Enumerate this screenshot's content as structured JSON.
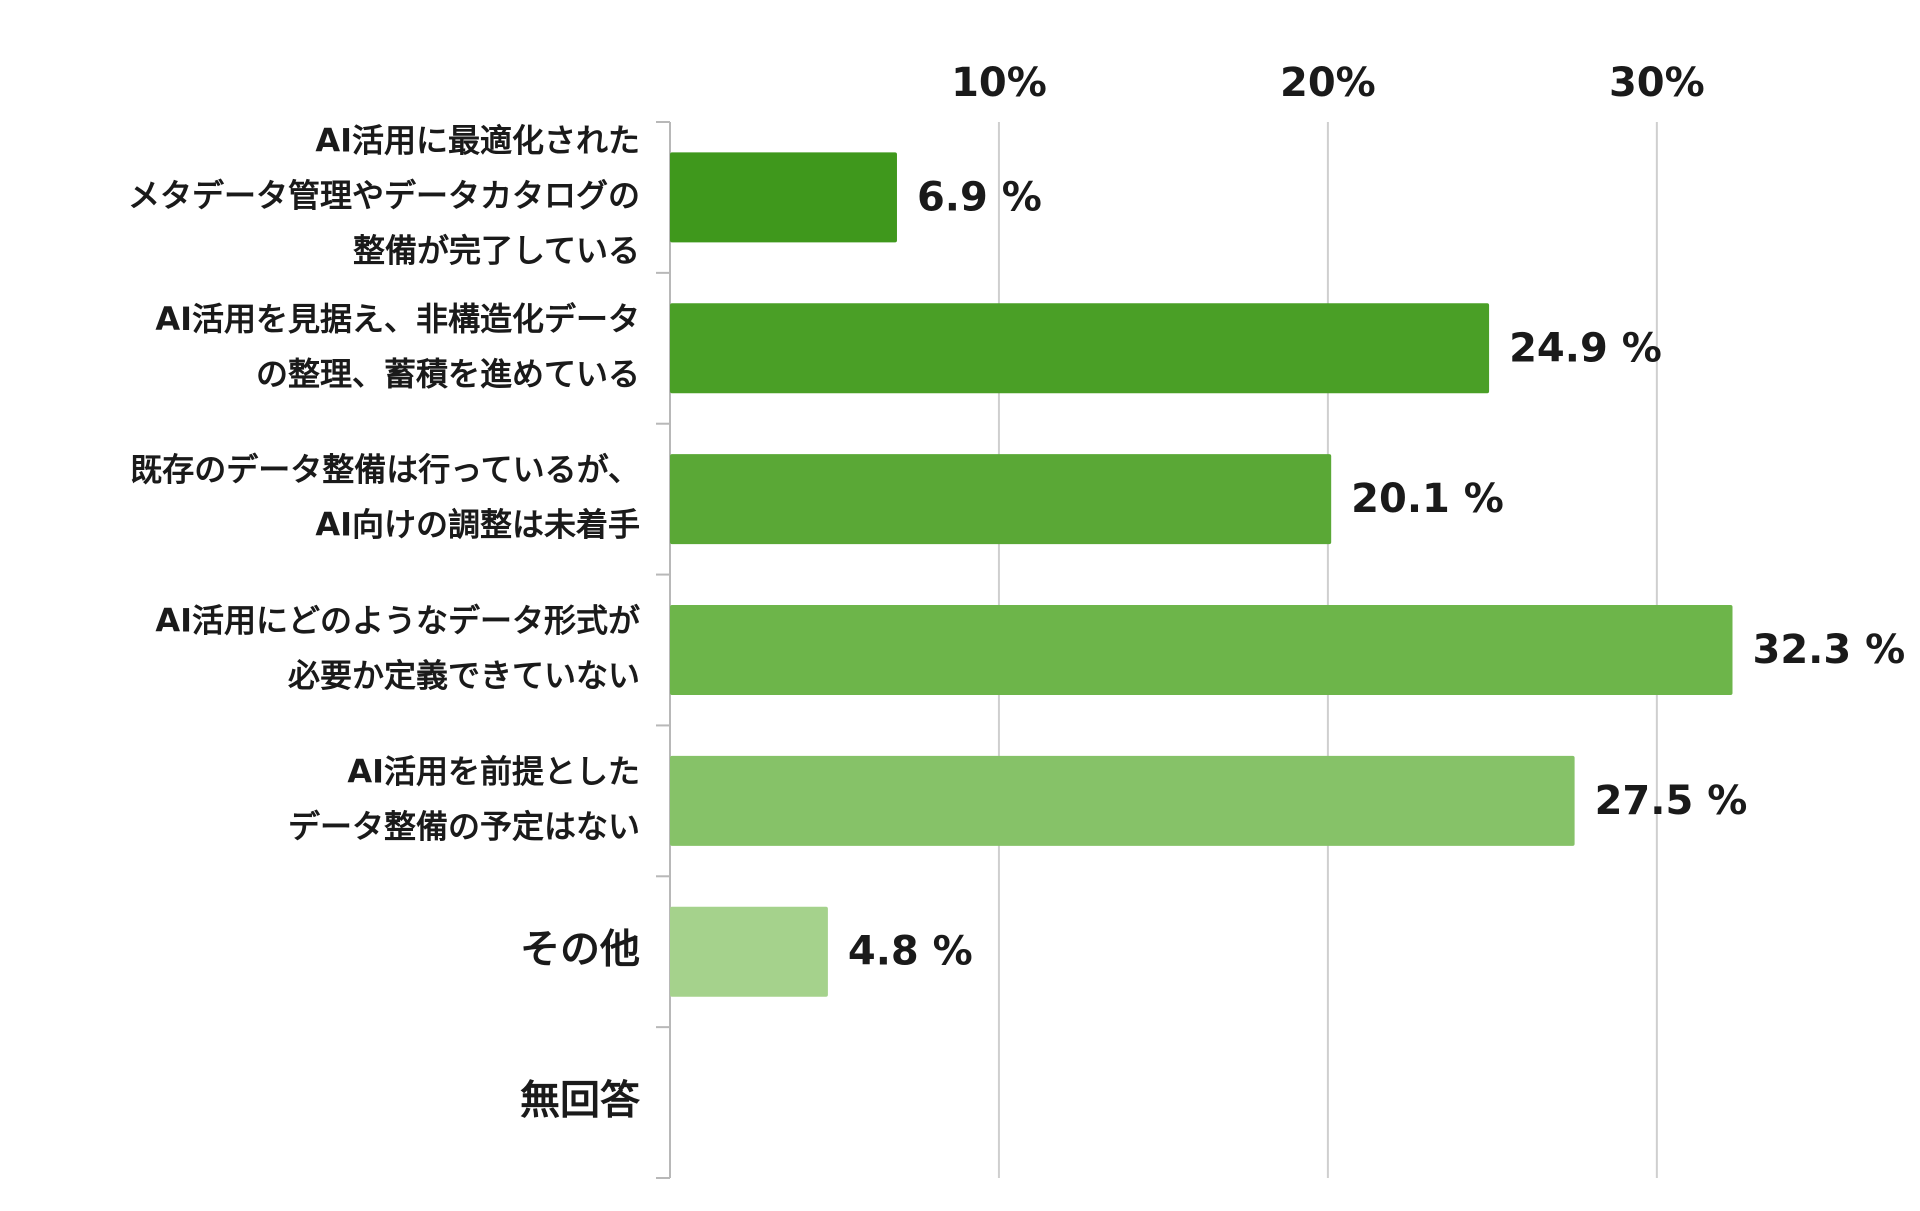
{
  "chart_data": {
    "type": "hbar",
    "categories": [
      [
        "AI活用に最適化された",
        "メタデータ管理やデータカタログの",
        "整備が完了している"
      ],
      [
        "AI活用を見据え、非構造化データ",
        "の整理、蓄積を進めている"
      ],
      [
        "既存のデータ整備は行っているが、",
        "AI向けの調整は未着手"
      ],
      [
        "AI活用にどのようなデータ形式が",
        "必要か定義できていない"
      ],
      [
        "AI活用を前提とした",
        "データ整備の予定はない"
      ],
      [
        "その他"
      ],
      [
        "無回答"
      ]
    ],
    "values": [
      6.9,
      24.9,
      20.1,
      32.3,
      27.5,
      4.8,
      null
    ],
    "value_labels": [
      "6.9 %",
      "24.9 %",
      "20.1 %",
      "32.3 %",
      "27.5 %",
      "4.8 %",
      null
    ],
    "colors": [
      "#3f981c",
      "#4a9f26",
      "#5aa836",
      "#6db54a",
      "#86c268",
      "#a5d28c",
      null
    ],
    "xlim": [
      0,
      38
    ],
    "xticks": [
      {
        "value": 10,
        "label": "10%"
      },
      {
        "value": 20,
        "label": "20%"
      },
      {
        "value": 30,
        "label": "30%"
      }
    ],
    "grid": true
  }
}
